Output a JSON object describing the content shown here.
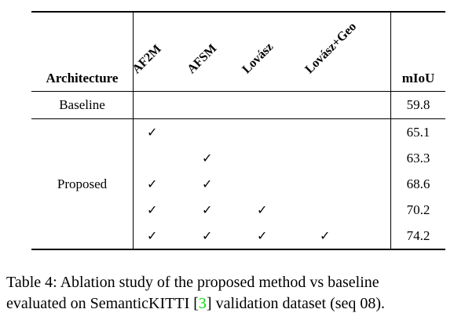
{
  "table": {
    "header": {
      "architecture": "Architecture",
      "methods": [
        "AF2M",
        "AFSM",
        "Lovász",
        "Lovász+Geo"
      ],
      "miou": "mIoU"
    },
    "baseline": {
      "label": "Baseline",
      "miou": "59.8"
    },
    "proposed_label": "Proposed",
    "proposed_rows": [
      {
        "checks": [
          "✓",
          "",
          "",
          ""
        ],
        "miou": "65.1"
      },
      {
        "checks": [
          "",
          "✓",
          "",
          ""
        ],
        "miou": "63.3"
      },
      {
        "checks": [
          "✓",
          "✓",
          "",
          ""
        ],
        "miou": "68.6"
      },
      {
        "checks": [
          "✓",
          "✓",
          "✓",
          ""
        ],
        "miou": "70.2"
      },
      {
        "checks": [
          "✓",
          "✓",
          "✓",
          "✓"
        ],
        "miou": "74.2"
      }
    ]
  },
  "caption": {
    "line1": "Table 4: Ablation study of the proposed method vs baseline",
    "line2_before": "evaluated on SemanticKITTI [",
    "citation": "3",
    "line2_after": "] validation dataset (seq 08).",
    "citation_color": "#00e000"
  }
}
